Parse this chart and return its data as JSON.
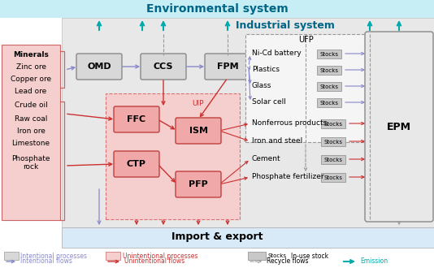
{
  "title_env": "Environmental system",
  "title_ind": "Industrial system",
  "title_imp": "Import & export",
  "env_bg": "#c8eef5",
  "ind_bg": "#e8e8e8",
  "imp_bg": "#d8eaf8",
  "unint_bg": "#f5cece",
  "minerals_bg": "#f5cece",
  "intentional_fc": "#d8d8d8",
  "intentional_ec": "#888888",
  "unintentional_fc": "#f0a8a8",
  "unintentional_ec": "#c04040",
  "UFP_fc": "#f0f0f0",
  "UFP_ec": "#999999",
  "EPM_fc": "#e8e8e8",
  "EPM_ec": "#888888",
  "stocks_fc": "#c8c8c8",
  "stocks_ec": "#888888",
  "arrow_int": "#8888cc",
  "arrow_unint": "#cc3030",
  "arrow_recycle": "#999999",
  "arrow_emit": "#00aaaa",
  "minerals": [
    "Minerals",
    "Zinc ore",
    "Copper ore",
    "Lead ore",
    "Crude oil",
    "Raw coal",
    "Iron ore",
    "Limestone",
    "Phosphate\nrock"
  ],
  "UFP_products": [
    "Ni-Cd battery",
    "Plastics",
    "Glass",
    "Solar cell"
  ],
  "unint_products": [
    "Nonferrous products",
    "Iron and steel",
    "Cement",
    "Phosphate fertilizer"
  ]
}
